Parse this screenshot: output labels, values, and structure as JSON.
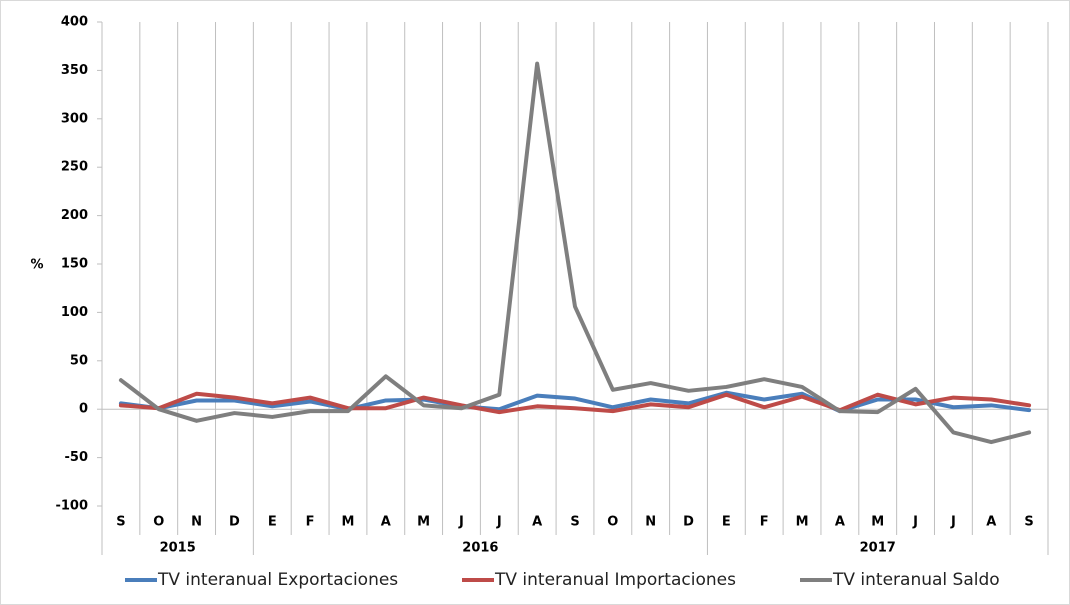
{
  "chart_data": {
    "type": "line",
    "y_label": "%",
    "categories": [
      "S",
      "O",
      "N",
      "D",
      "E",
      "F",
      "M",
      "A",
      "M",
      "J",
      "J",
      "A",
      "S",
      "O",
      "N",
      "D",
      "E",
      "F",
      "M",
      "A",
      "M",
      "J",
      "J",
      "A",
      "S"
    ],
    "groups": [
      {
        "label": "2015",
        "count": 4
      },
      {
        "label": "2016",
        "count": 12
      },
      {
        "label": "2017",
        "count": 9
      }
    ],
    "series": [
      {
        "name": "TV interanual Exportaciones",
        "color": "#4a7ebb",
        "values": [
          6,
          1,
          9,
          9,
          3,
          8,
          0,
          9,
          10,
          3,
          0,
          14,
          11,
          2,
          10,
          6,
          17,
          10,
          16,
          -2,
          10,
          10,
          2,
          4,
          -1
        ]
      },
      {
        "name": "TV interanual Importaciones",
        "color": "#be4b48",
        "values": [
          4,
          1,
          16,
          12,
          6,
          12,
          1,
          1,
          12,
          4,
          -3,
          3,
          1,
          -2,
          5,
          2,
          15,
          2,
          13,
          -1,
          15,
          5,
          12,
          10,
          4
        ]
      },
      {
        "name": "TV interanual Saldo",
        "color": "#7f7f7f",
        "values": [
          30,
          0,
          -12,
          -4,
          -8,
          -2,
          -2,
          34,
          4,
          1,
          15,
          357,
          106,
          20,
          27,
          19,
          23,
          31,
          23,
          -2,
          -3,
          21,
          -24,
          -34,
          -24
        ]
      }
    ],
    "ylim": [
      -100,
      400
    ],
    "yticks": [
      -100,
      -50,
      0,
      50,
      100,
      150,
      200,
      250,
      300,
      350,
      400
    ],
    "legend": "bottom"
  }
}
